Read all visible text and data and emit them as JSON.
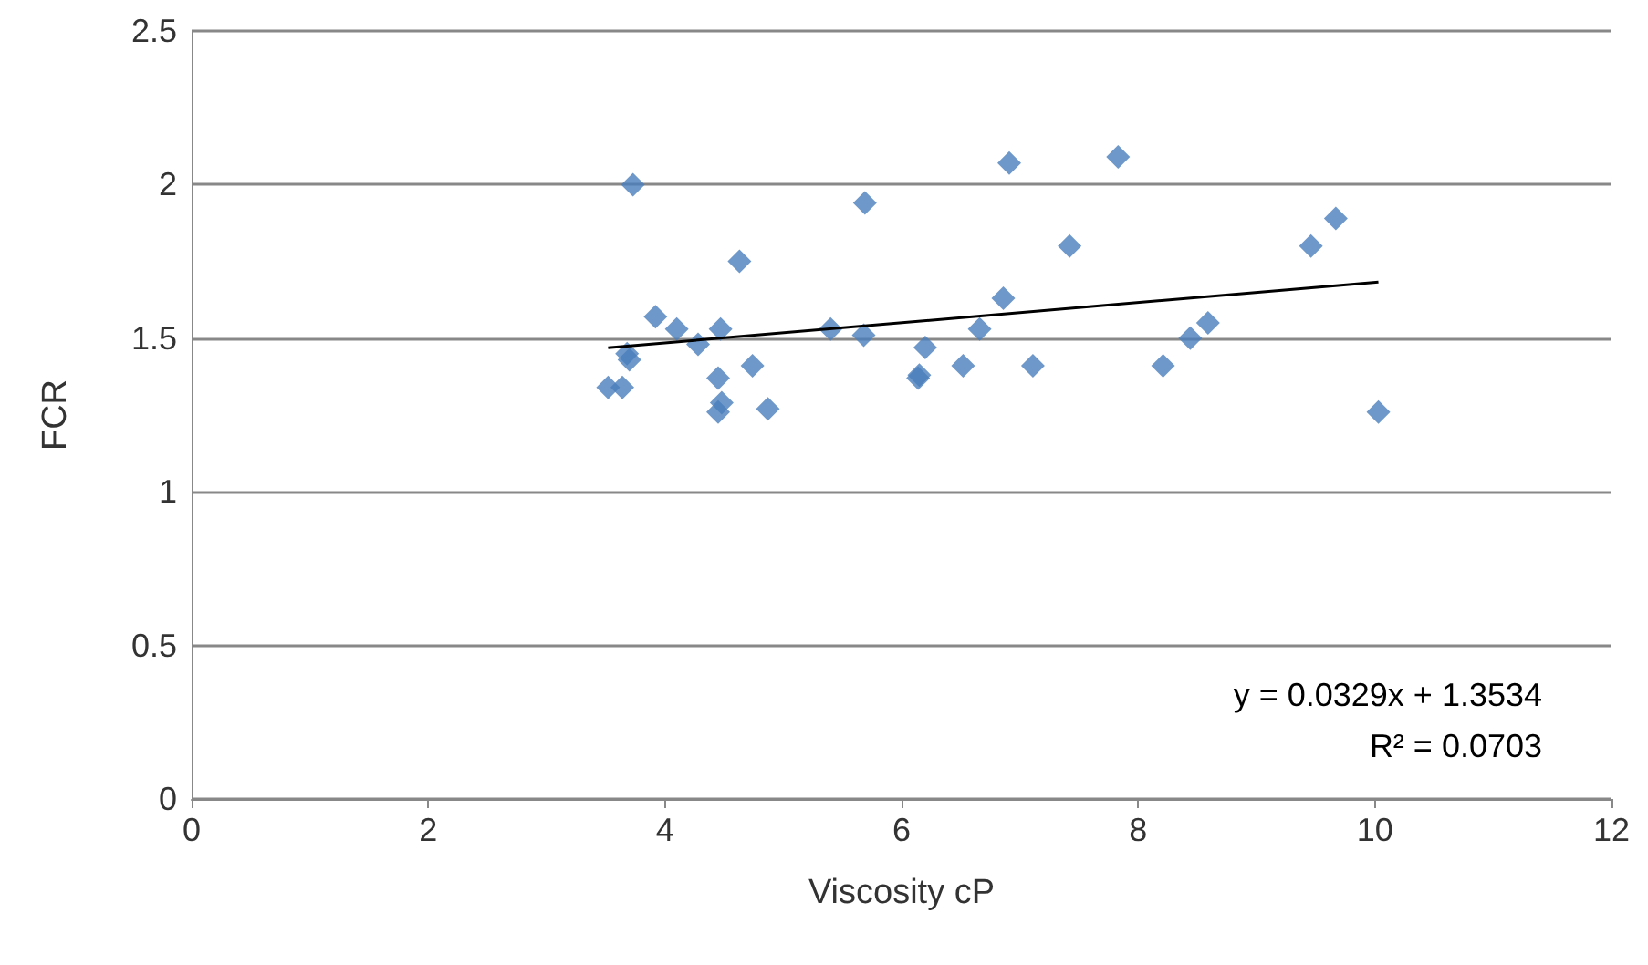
{
  "chart_data": {
    "type": "scatter",
    "xlabel": "Viscosity cP",
    "ylabel": "FCR",
    "series": [
      {
        "marker": "diamond",
        "color": "#4a7ebb",
        "x": [
          3.52,
          3.64,
          3.7,
          3.68,
          3.73,
          3.92,
          4.1,
          4.28,
          4.47,
          4.45,
          4.48,
          4.45,
          4.63,
          4.74,
          4.87,
          5.4,
          5.68,
          5.69,
          6.14,
          6.15,
          6.2,
          6.52,
          6.66,
          6.86,
          6.91,
          7.11,
          7.42,
          7.83,
          8.21,
          8.44,
          8.59,
          9.46,
          9.67,
          10.03
        ],
        "values": [
          1.34,
          1.34,
          1.43,
          1.45,
          2.0,
          1.57,
          1.53,
          1.48,
          1.53,
          1.37,
          1.29,
          1.26,
          1.75,
          1.41,
          1.27,
          1.53,
          1.51,
          1.94,
          1.37,
          1.38,
          1.47,
          1.41,
          1.53,
          1.63,
          2.07,
          1.41,
          1.8,
          2.09,
          1.41,
          1.5,
          1.55,
          1.8,
          1.89,
          1.26
        ]
      },
      {
        "type": "line",
        "marker": "none",
        "color": "#000000",
        "x": [
          3.52,
          10.03
        ],
        "values": [
          1.469,
          1.683
        ]
      }
    ],
    "line_style": "solid",
    "xlim": [
      0,
      12
    ],
    "xticks": [
      0,
      2,
      4,
      6,
      8,
      10,
      12
    ],
    "ylim": [
      0,
      2.5
    ],
    "yticks": [
      0,
      0.5,
      1,
      1.5,
      2,
      2.5
    ],
    "grid": "y",
    "annotations": [
      "y = 0.0329x + 1.3534",
      "R² = 0.0703"
    ]
  }
}
